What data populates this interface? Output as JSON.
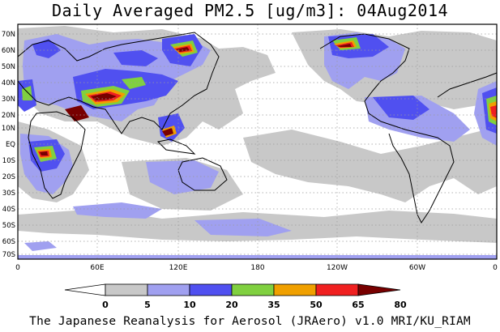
{
  "title": "Daily Averaged PM2.5 [ug/m3]: 04Aug2014",
  "footer": "The Japanese Reanalysis for Aerosol (JRAero) v1.0 MRI/KU_RIAM",
  "latitude_labels": [
    "70N",
    "60N",
    "50N",
    "40N",
    "30N",
    "20N",
    "10N",
    "EQ",
    "10S",
    "20S",
    "30S",
    "40S",
    "50S",
    "60S",
    "70S"
  ],
  "longitude_labels": [
    "0",
    "60E",
    "120E",
    "180",
    "120W",
    "60W",
    "0"
  ],
  "colorbar": {
    "labels": [
      "0",
      "5",
      "10",
      "20",
      "35",
      "50",
      "65",
      "80"
    ],
    "colors": [
      "#ffffff",
      "#c8c8c8",
      "#a0a0f0",
      "#5050f0",
      "#80d040",
      "#f0a000",
      "#f02020",
      "#780000"
    ]
  },
  "legend_colors": {
    "background": "#ffffff",
    "gray": "#c8c8c8",
    "light_blue": "#a0a0f0",
    "blue": "#5050f0",
    "green": "#80d040",
    "orange": "#f0a000",
    "red": "#f02020",
    "dark_red": "#780000"
  }
}
